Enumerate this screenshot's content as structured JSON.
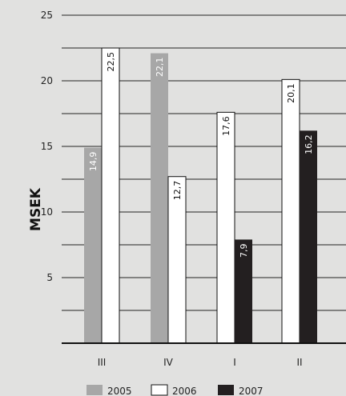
{
  "chart_data": {
    "type": "bar",
    "categories": [
      "III",
      "IV",
      "I",
      "II"
    ],
    "series": [
      {
        "name": "2005",
        "color": "#a7a7a7",
        "values": [
          14.9,
          22.1,
          null,
          null
        ]
      },
      {
        "name": "2006",
        "color": "#ffffff",
        "values": [
          22.5,
          12.7,
          17.6,
          20.1
        ]
      },
      {
        "name": "2007",
        "color": "#231f20",
        "values": [
          null,
          null,
          7.9,
          16.2
        ]
      }
    ],
    "data_labels": {
      "2005": [
        "14,9",
        "22,1",
        "",
        ""
      ],
      "2006": [
        "22,5",
        "12,7",
        "17,6",
        "20,1"
      ],
      "2007": [
        "",
        "",
        "7,9",
        "16,2"
      ]
    },
    "ylabel": "MSEK",
    "ylim": [
      0,
      25
    ],
    "yticks": [
      5,
      10,
      15,
      20,
      25
    ],
    "grid_step": 2.5,
    "grid": true,
    "legend_position": "bottom"
  }
}
